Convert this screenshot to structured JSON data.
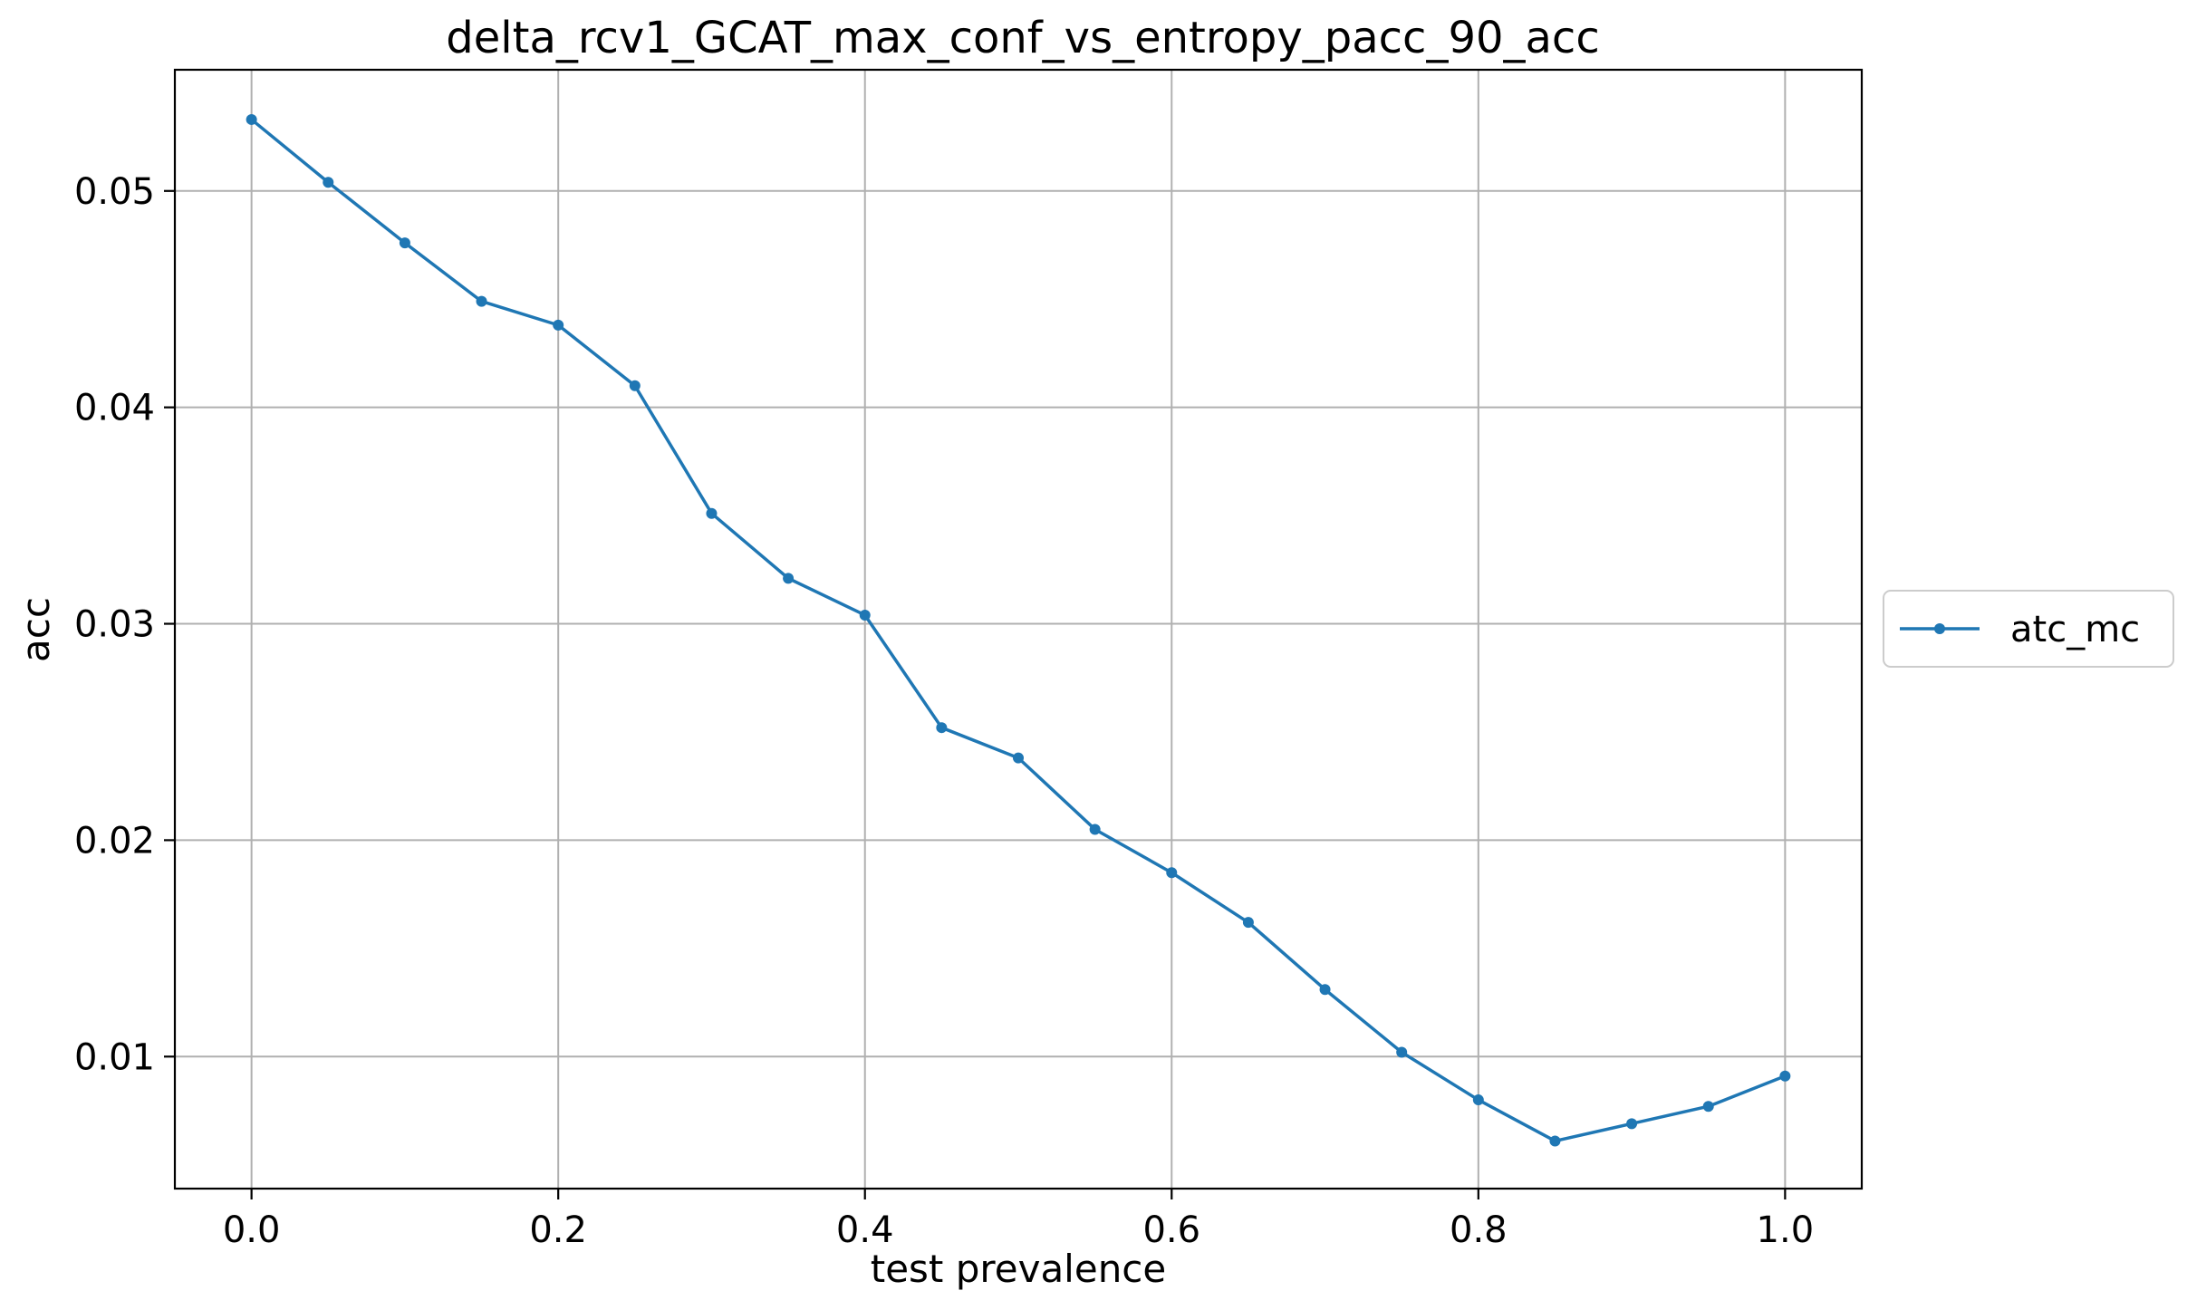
{
  "chart_data": {
    "type": "line",
    "title": "delta_rcv1_GCAT_max_conf_vs_entropy_pacc_90_acc",
    "xlabel": "test prevalence",
    "ylabel": "acc",
    "xlim": [
      -0.05,
      1.05
    ],
    "ylim": [
      0.0039,
      0.0556
    ],
    "xticks": [
      0.0,
      0.2,
      0.4,
      0.6,
      0.8,
      1.0
    ],
    "xtick_labels": [
      "0.0",
      "0.2",
      "0.4",
      "0.6",
      "0.8",
      "1.0"
    ],
    "yticks": [
      0.01,
      0.02,
      0.03,
      0.04,
      0.05
    ],
    "ytick_labels": [
      "0.01",
      "0.02",
      "0.03",
      "0.04",
      "0.05"
    ],
    "grid": true,
    "legend_position": "center-right-outside",
    "x": [
      0.0,
      0.05,
      0.1,
      0.15,
      0.2,
      0.25,
      0.3,
      0.35,
      0.4,
      0.45,
      0.5,
      0.55,
      0.6,
      0.65,
      0.7,
      0.75,
      0.8,
      0.85,
      0.9,
      0.95,
      1.0
    ],
    "series": [
      {
        "name": "atc_mc",
        "color": "#1f77b4",
        "values": [
          0.0533,
          0.0504,
          0.0476,
          0.0449,
          0.0438,
          0.041,
          0.0351,
          0.0321,
          0.0304,
          0.0252,
          0.0238,
          0.0205,
          0.0185,
          0.0162,
          0.0131,
          0.0102,
          0.008,
          0.0061,
          0.0069,
          0.0077,
          0.0091
        ]
      }
    ]
  }
}
